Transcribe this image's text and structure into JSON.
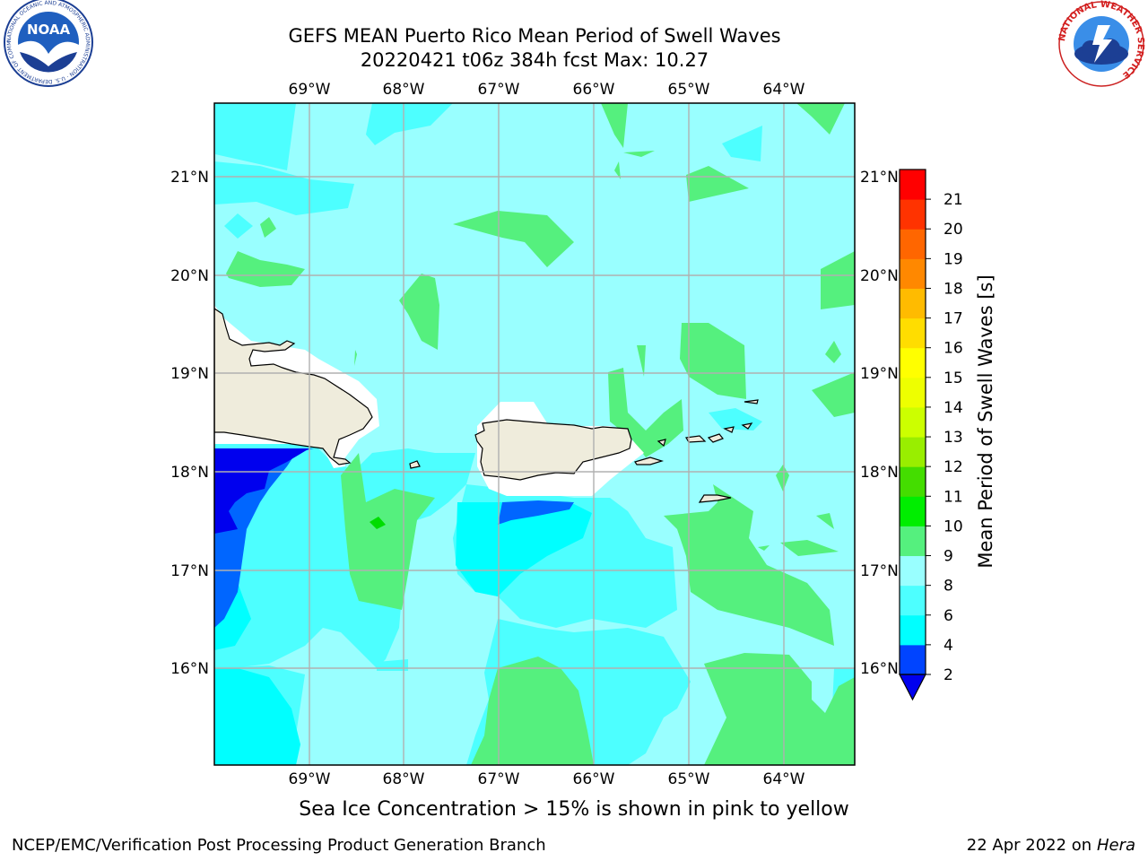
{
  "title_line1": "GEFS MEAN Puerto Rico Mean Period of Swell Waves",
  "title_line2": "20220421 t06z 384h fcst   Max: 10.27",
  "caption": "Sea Ice Concentration > 15% is shown in pink to yellow",
  "footer_left": "NCEP/EMC/Verification Post Processing Product Generation Branch",
  "footer_date": "22 Apr 2022 on ",
  "footer_host": "Hera",
  "logos": {
    "noaa_text": "NOAA",
    "noaa_ring": "NATIONAL OCEANIC AND ATMOSPHERIC ADMINISTRATION · U.S. DEPARTMENT OF COMMERCE",
    "nws_ring": "NATIONAL WEATHER SERVICE"
  },
  "map": {
    "lon_labels": [
      "69°W",
      "68°W",
      "67°W",
      "66°W",
      "65°W",
      "64°W"
    ],
    "lat_labels": [
      "21°N",
      "20°N",
      "19°N",
      "18°N",
      "17°N",
      "16°N"
    ],
    "colorbar_label": "Mean Period of Swell Waves [s]",
    "colorbar_ticks": [
      "2",
      "4",
      "6",
      "8",
      "9",
      "10",
      "11",
      "12",
      "13",
      "14",
      "15",
      "16",
      "17",
      "18",
      "19",
      "20",
      "21"
    ],
    "colorbar_colors": [
      "#0044ff",
      "#00ffff",
      "#4dffff",
      "#99ffff",
      "#55f07e",
      "#00ee00",
      "#44dd00",
      "#99ee00",
      "#ccff00",
      "#eeff00",
      "#ffff00",
      "#ffdd00",
      "#ffbb00",
      "#ff8800",
      "#ff6600",
      "#ff3300",
      "#ff0000"
    ],
    "colorbar_extend_color": "#0000ee",
    "colors": {
      "ocean_8_9": "#99ffff",
      "ocean_6_8": "#4dffff",
      "ocean_4_6": "#00ffff",
      "ocean_2_4": "#0066ff",
      "ocean_lt2": "#0000ee",
      "ocean_9_10": "#55f07e",
      "ocean_10_11": "#00dd00",
      "land": "#efecdc",
      "grid": "#b0b0b0"
    }
  }
}
